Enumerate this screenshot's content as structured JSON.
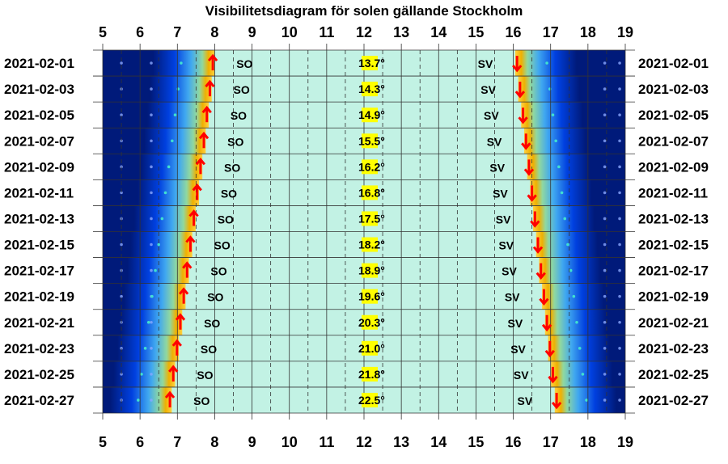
{
  "chart_data": {
    "type": "heatmap",
    "title": "Visibilitetsdiagram för solen gällande Stockholm",
    "x_ticks": [
      5,
      6,
      7,
      8,
      9,
      10,
      11,
      12,
      13,
      14,
      15,
      16,
      17,
      18,
      19
    ],
    "xlim": [
      5,
      19
    ],
    "dates": [
      "2021-02-01",
      "2021-02-03",
      "2021-02-05",
      "2021-02-07",
      "2021-02-09",
      "2021-02-11",
      "2021-02-13",
      "2021-02-15",
      "2021-02-17",
      "2021-02-19",
      "2021-02-21",
      "2021-02-23",
      "2021-02-25",
      "2021-02-27"
    ],
    "max_altitude_labels": [
      "13.7°",
      "14.3°",
      "14.9°",
      "15.5°",
      "16.2°",
      "16.8°",
      "17.5°",
      "18.2°",
      "18.9°",
      "19.6°",
      "20.3°",
      "21.0°",
      "21.8°",
      "22.5°"
    ],
    "max_altitude_deg": [
      13.7,
      14.3,
      14.9,
      15.5,
      16.2,
      16.8,
      17.5,
      18.2,
      18.9,
      19.6,
      20.3,
      21.0,
      21.8,
      22.5
    ],
    "sunrise_direction_label": "SO",
    "sunset_direction_label": "SV",
    "sunrise_hour": [
      7.95,
      7.87,
      7.79,
      7.71,
      7.62,
      7.53,
      7.44,
      7.35,
      7.26,
      7.17,
      7.08,
      6.99,
      6.89,
      6.8
    ],
    "sunset_hour": [
      16.1,
      16.18,
      16.26,
      16.34,
      16.42,
      16.5,
      16.58,
      16.66,
      16.74,
      16.82,
      16.9,
      16.98,
      17.06,
      17.16
    ],
    "twilight_width_hours": 1.6,
    "colors": {
      "night": "#001a7a",
      "twilight_deep": "#0040e0",
      "twilight_light": "#40a8f0",
      "horizon_gold": "#f0b000",
      "day": "#c2f2e4",
      "arrow": "#ff0000",
      "noon_label_bg": "#ffff00",
      "grid": "#333333"
    }
  }
}
